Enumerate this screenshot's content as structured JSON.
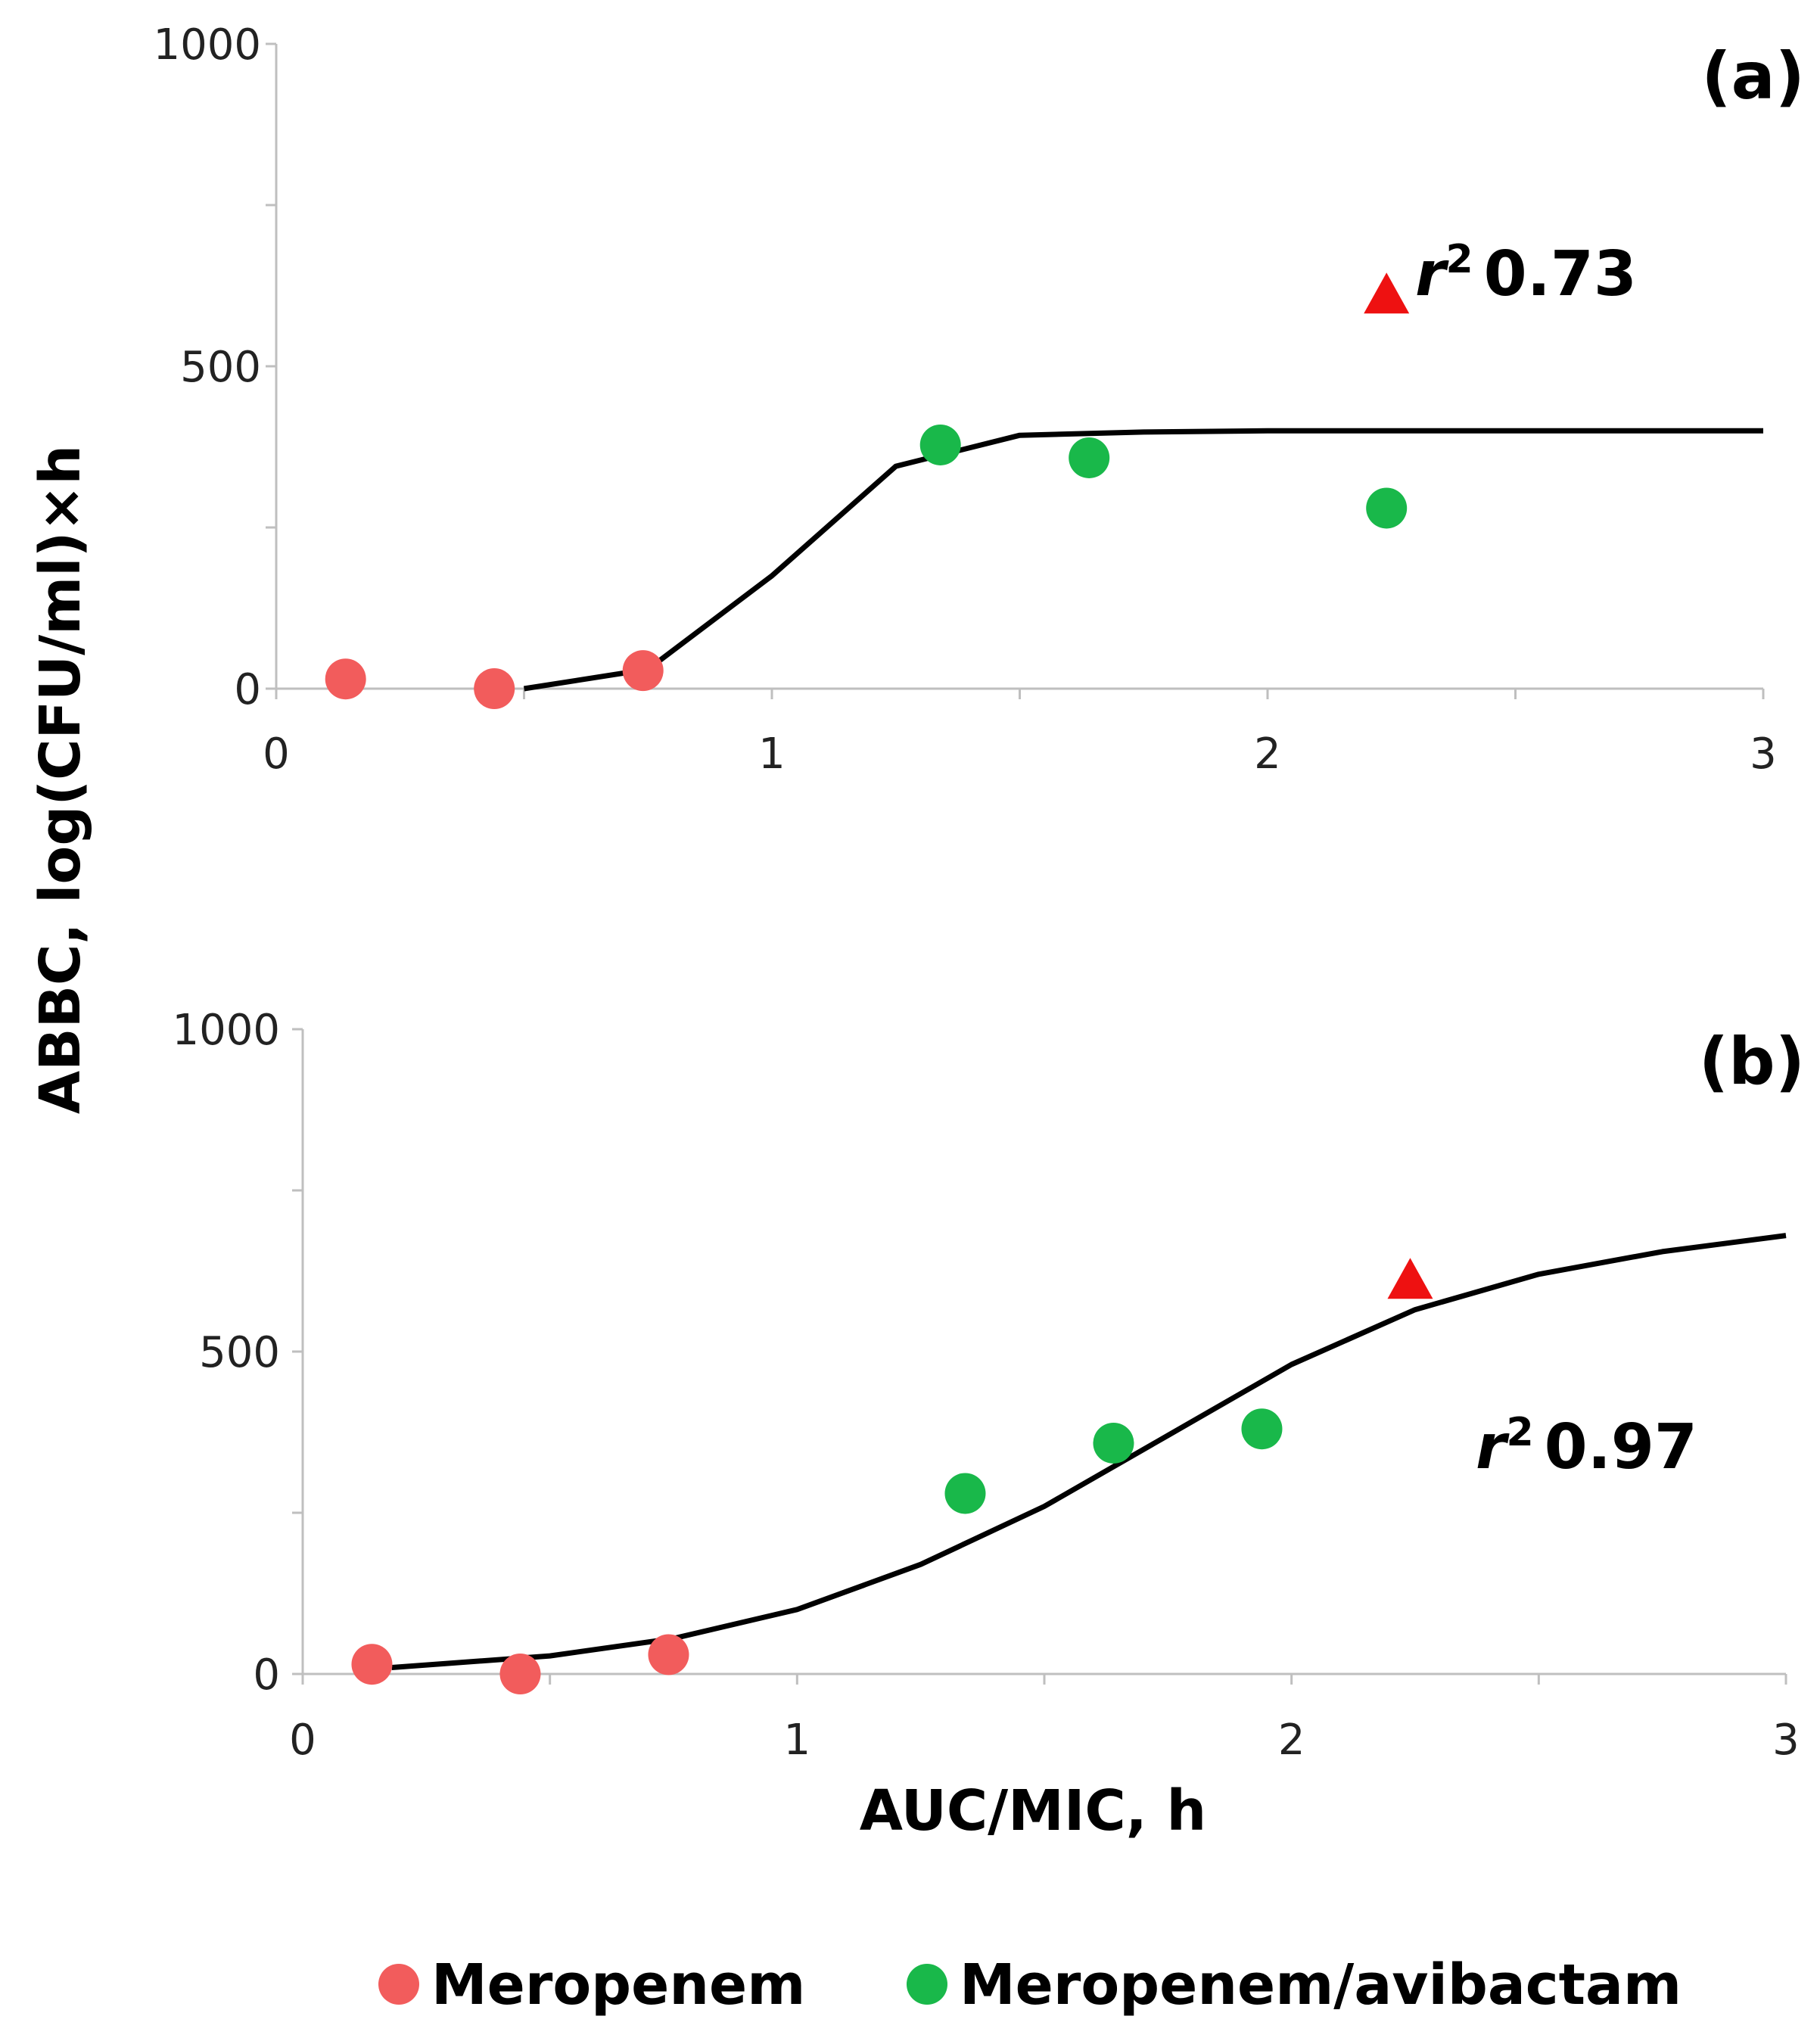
{
  "colors": {
    "meropenem": "#f25c5c",
    "meropenem_avibactam": "#19b84a",
    "triangle": "#ee1111",
    "axis": "#bfbfbf",
    "curve": "#000000"
  },
  "legend": {
    "items": [
      {
        "label": "Meropenem",
        "color": "#f25c5c"
      },
      {
        "label": "Meropenem/avibactam",
        "color": "#19b84a"
      }
    ]
  },
  "axes": {
    "ylabel": "ABBC, log(CFU/ml)×h",
    "xlabel": "AUC/MIC, h"
  },
  "chart_data": [
    {
      "panel": "(a)",
      "type": "scatter",
      "xlim": [
        0,
        3
      ],
      "ylim": [
        0,
        1000
      ],
      "xticks": [
        "0",
        "1",
        "2",
        "3"
      ],
      "yticks": [
        "0",
        "500",
        "1000"
      ],
      "annotation": {
        "symbol": "r",
        "superscript": "2",
        "value": "0.73"
      },
      "series": [
        {
          "name": "Meropenem",
          "x": [
            0.14,
            0.44,
            0.74
          ],
          "y": [
            15,
            0,
            28
          ]
        },
        {
          "name": "Meropenem/avibactam",
          "x": [
            1.34,
            1.64,
            2.24
          ],
          "y": [
            378,
            358,
            280
          ]
        },
        {
          "name": "triangle",
          "x": [
            2.24
          ],
          "y": [
            610
          ]
        }
      ],
      "fit": {
        "x": [
          0.5,
          0.75,
          1.0,
          1.25,
          1.5,
          1.75,
          2.0,
          2.5,
          3.0
        ],
        "y": [
          0,
          30,
          175,
          345,
          393,
          398,
          400,
          400,
          400
        ]
      }
    },
    {
      "panel": "(b)",
      "type": "scatter",
      "xlim": [
        0,
        3
      ],
      "ylim": [
        0,
        1000
      ],
      "xticks": [
        "0",
        "1",
        "2",
        "3"
      ],
      "yticks": [
        "0",
        "500",
        "1000"
      ],
      "annotation": {
        "symbol": "r",
        "superscript": "2",
        "value": "0.97"
      },
      "series": [
        {
          "name": "Meropenem",
          "x": [
            0.14,
            0.44,
            0.74
          ],
          "y": [
            15,
            0,
            30
          ]
        },
        {
          "name": "Meropenem/avibactam",
          "x": [
            1.34,
            1.64,
            1.94
          ],
          "y": [
            280,
            358,
            380
          ]
        },
        {
          "name": "triangle",
          "x": [
            2.24
          ],
          "y": [
            610
          ]
        }
      ],
      "fit": {
        "x": [
          0.18,
          0.5,
          0.75,
          1.0,
          1.25,
          1.5,
          1.75,
          2.0,
          2.25,
          2.5,
          2.75,
          3.0
        ],
        "y": [
          10,
          28,
          55,
          100,
          170,
          260,
          370,
          480,
          565,
          620,
          655,
          680
        ]
      }
    }
  ]
}
